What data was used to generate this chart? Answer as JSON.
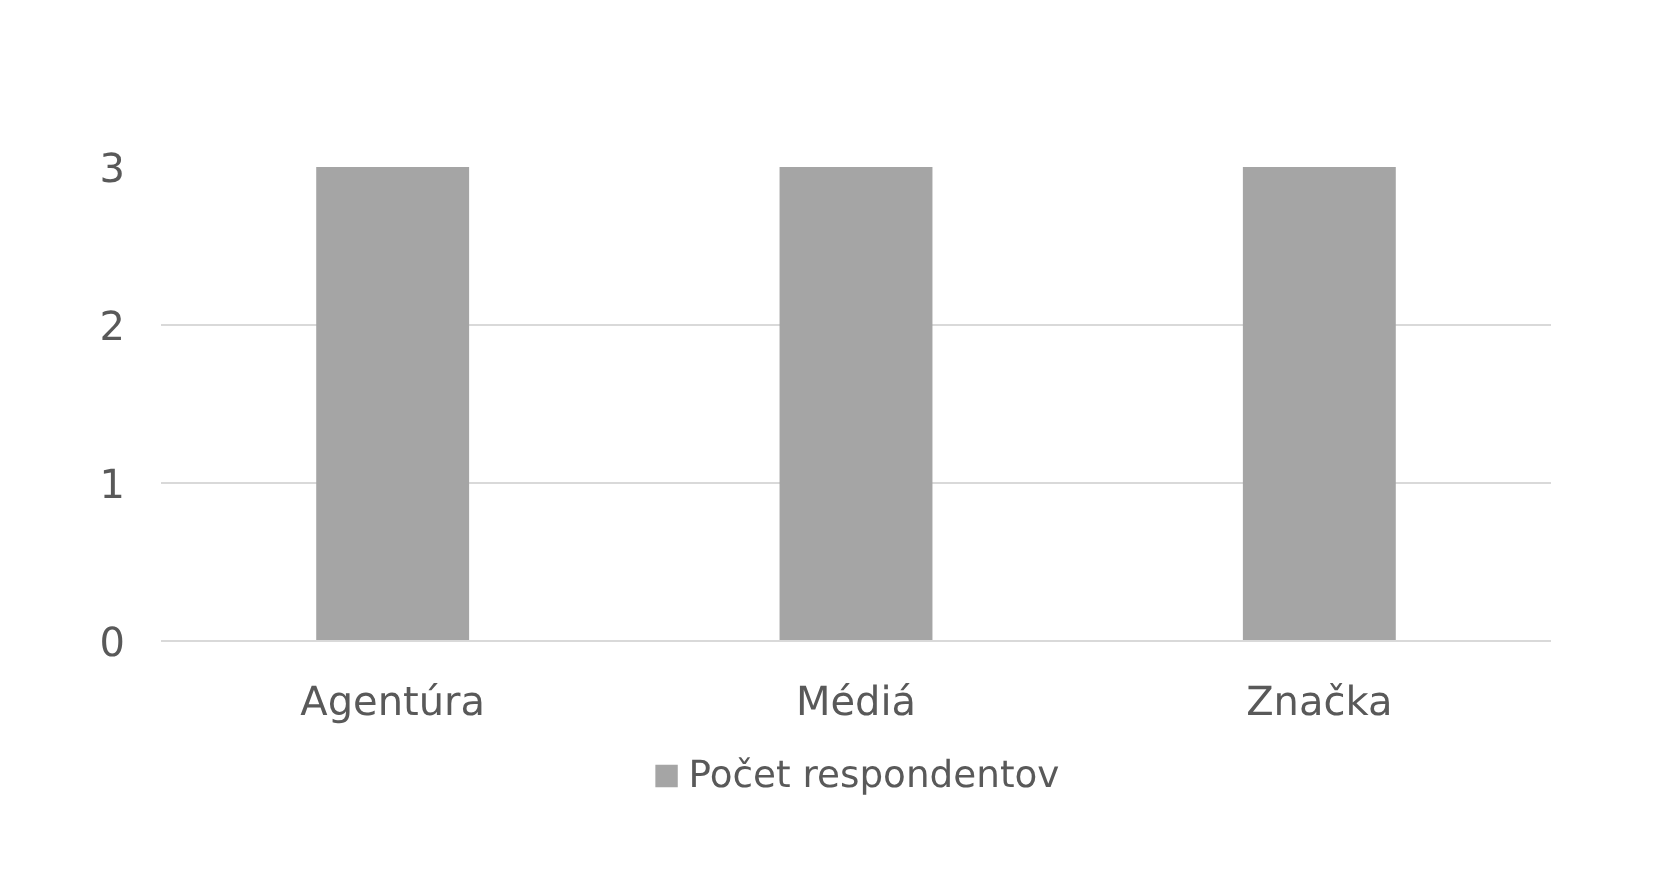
{
  "chart_data": {
    "type": "bar",
    "categories": [
      "Agentúra",
      "Médiá",
      "Značka"
    ],
    "series": [
      {
        "name": "Počet respondentov",
        "color": "#a5a5a5",
        "values": [
          3,
          3,
          3
        ]
      }
    ],
    "ylim": [
      0,
      3
    ],
    "yticks": [
      0,
      1,
      2,
      3
    ],
    "grid": "y",
    "legend": "bottom"
  }
}
